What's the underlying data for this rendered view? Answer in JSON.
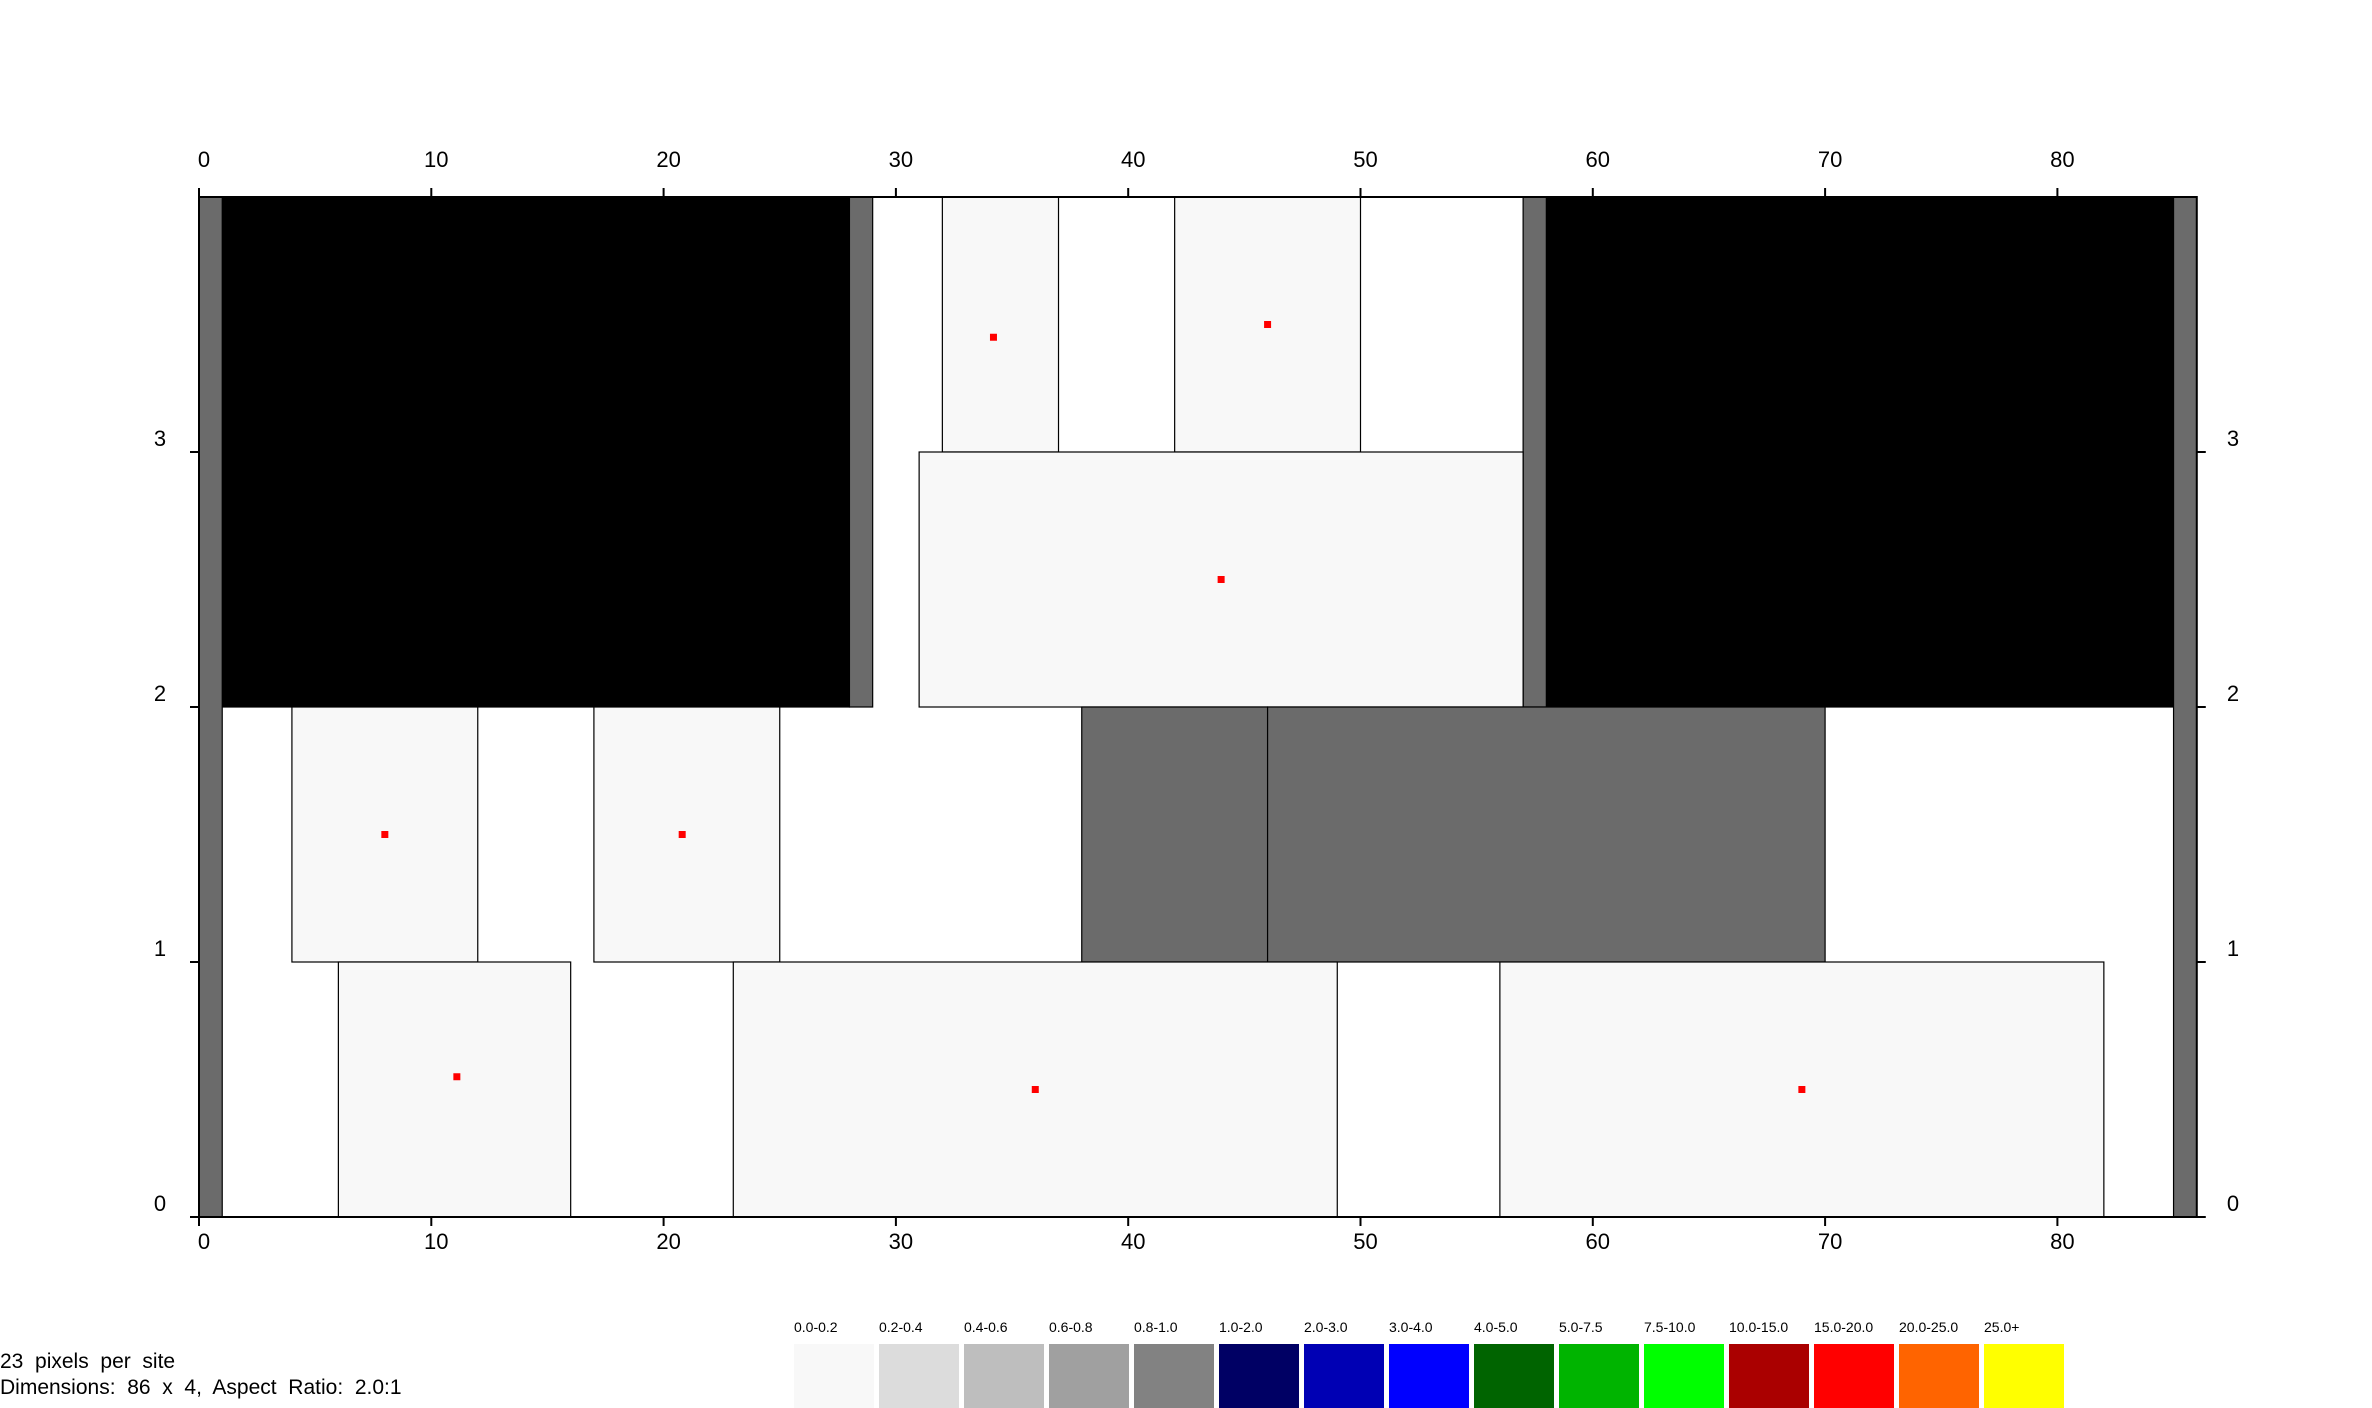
{
  "axes": {
    "x_ticks": [
      "0",
      "10",
      "20",
      "30",
      "40",
      "50",
      "60",
      "70",
      "80"
    ],
    "y_ticks": [
      "0",
      "1",
      "2",
      "3"
    ],
    "x_range": [
      0,
      86
    ],
    "y_range": [
      0,
      4
    ]
  },
  "colors": {
    "blockage": "#000000",
    "io_column": "#6b6b6b",
    "empty_block": "#f8f8f8",
    "site_background": "#ffffff",
    "marker": "#ff0000"
  },
  "blocks": [
    {
      "name": "left-blockage",
      "x0": 1,
      "x1": 28,
      "y0": 2,
      "y1": 4,
      "kind": "blockage"
    },
    {
      "name": "right-blockage",
      "x0": 58,
      "x1": 85,
      "y0": 2,
      "y1": 4,
      "kind": "blockage"
    },
    {
      "name": "io-col-left",
      "x0": 0,
      "x1": 1,
      "y0": 0,
      "y1": 4,
      "kind": "io"
    },
    {
      "name": "io-col-mid-left",
      "x0": 28,
      "x1": 29,
      "y0": 2,
      "y1": 4,
      "kind": "io"
    },
    {
      "name": "io-col-mid-right",
      "x0": 57,
      "x1": 58,
      "y0": 2,
      "y1": 4,
      "kind": "io"
    },
    {
      "name": "io-col-right",
      "x0": 85,
      "x1": 86,
      "y0": 0,
      "y1": 4,
      "kind": "io"
    },
    {
      "name": "cell-32-37",
      "x0": 32,
      "x1": 37,
      "y0": 3,
      "y1": 4,
      "kind": "cell",
      "mx": 34.2,
      "my": 3.45
    },
    {
      "name": "cell-42-50",
      "x0": 42,
      "x1": 50,
      "y0": 3,
      "y1": 4,
      "kind": "cell",
      "mx": 46,
      "my": 3.5
    },
    {
      "name": "cell-31-57",
      "x0": 31,
      "x1": 57,
      "y0": 2,
      "y1": 3,
      "kind": "cell",
      "mx": 44,
      "my": 2.5
    },
    {
      "name": "cell-4-12",
      "x0": 4,
      "x1": 12,
      "y0": 1,
      "y1": 2,
      "kind": "cell",
      "mx": 8,
      "my": 1.5
    },
    {
      "name": "cell-17-25",
      "x0": 17,
      "x1": 25,
      "y0": 1,
      "y1": 2,
      "kind": "cell",
      "mx": 20.8,
      "my": 1.5
    },
    {
      "name": "dark-38-46",
      "x0": 38,
      "x1": 46,
      "y0": 1,
      "y1": 2,
      "kind": "dark"
    },
    {
      "name": "dark-46-70",
      "x0": 46,
      "x1": 70,
      "y0": 1,
      "y1": 2,
      "kind": "dark"
    },
    {
      "name": "cell-6-16",
      "x0": 6,
      "x1": 16,
      "y0": 0,
      "y1": 1,
      "kind": "cell",
      "mx": 11.1,
      "my": 0.55
    },
    {
      "name": "cell-23-49",
      "x0": 23,
      "x1": 49,
      "y0": 0,
      "y1": 1,
      "kind": "cell",
      "mx": 36,
      "my": 0.5
    },
    {
      "name": "cell-56-82",
      "x0": 56,
      "x1": 82,
      "y0": 0,
      "y1": 1,
      "kind": "cell",
      "mx": 69,
      "my": 0.5
    }
  ],
  "info": {
    "line1": "23  pixels  per  site",
    "line2": "Dimensions:  86  x  4,  Aspect  Ratio:  2.0:1"
  },
  "legend": [
    {
      "label": "0.0-0.2",
      "color": "#f8f8f8"
    },
    {
      "label": "0.2-0.4",
      "color": "#dcdcdc"
    },
    {
      "label": "0.4-0.6",
      "color": "#bebebe"
    },
    {
      "label": "0.6-0.8",
      "color": "#a0a0a0"
    },
    {
      "label": "0.8-1.0",
      "color": "#828282"
    },
    {
      "label": "1.0-2.0",
      "color": "#000064"
    },
    {
      "label": "2.0-3.0",
      "color": "#0000b4"
    },
    {
      "label": "3.0-4.0",
      "color": "#0000ff"
    },
    {
      "label": "4.0-5.0",
      "color": "#006400"
    },
    {
      "label": "5.0-7.5",
      "color": "#00b400"
    },
    {
      "label": "7.5-10.0",
      "color": "#00ff00"
    },
    {
      "label": "10.0-15.0",
      "color": "#aa0000"
    },
    {
      "label": "15.0-20.0",
      "color": "#ff0000"
    },
    {
      "label": "20.0-25.0",
      "color": "#ff6400"
    },
    {
      "label": "25.0+",
      "color": "#ffff00"
    }
  ]
}
